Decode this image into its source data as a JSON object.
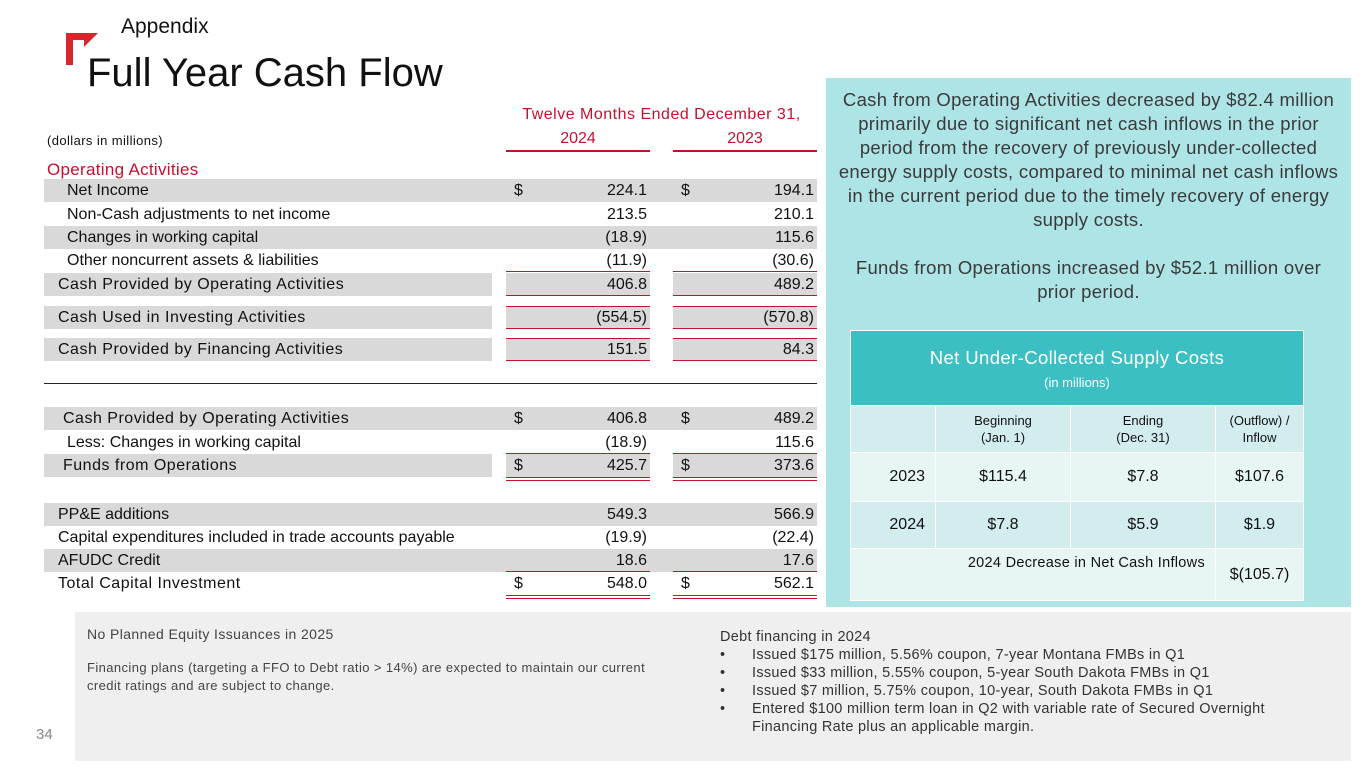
{
  "header": {
    "section": "Appendix",
    "title": "Full Year Cash Flow"
  },
  "table": {
    "units": "(dollars in millions)",
    "period": "Twelve Months Ended December 31,",
    "years": [
      "2024",
      "2023"
    ],
    "operating_header": "Operating Activities",
    "rows": [
      {
        "label": "Net Income",
        "cur": "$",
        "v1": "224.1",
        "v2": "194.1"
      },
      {
        "label": "Non-Cash adjustments to net income",
        "cur": "",
        "v1": "213.5",
        "v2": "210.1"
      },
      {
        "label": "Changes in working capital",
        "cur": "",
        "v1": "(18.9)",
        "v2": "115.6"
      },
      {
        "label": "Other noncurrent assets & liabilities",
        "cur": "",
        "v1": "(11.9)",
        "v2": "(30.6)"
      },
      {
        "label": "Cash Provided by Operating Activities",
        "cur": "",
        "v1": "406.8",
        "v2": "489.2"
      },
      {
        "label": "Cash Used in Investing Activities",
        "cur": "",
        "v1": "(554.5)",
        "v2": "(570.8)"
      },
      {
        "label": "Cash Provided by Financing Activities",
        "cur": "",
        "v1": "151.5",
        "v2": "84.3"
      },
      {
        "label": "Cash Provided by Operating Activities",
        "cur": "$",
        "v1": "406.8",
        "v2": "489.2"
      },
      {
        "label": "Less: Changes in working capital",
        "cur": "",
        "v1": "(18.9)",
        "v2": "115.6"
      },
      {
        "label": "Funds from Operations",
        "cur": "$",
        "v1": "425.7",
        "v2": "373.6"
      },
      {
        "label": "PP&E additions",
        "cur": "",
        "v1": "549.3",
        "v2": "566.9"
      },
      {
        "label": "Capital expenditures included in trade accounts payable",
        "cur": "",
        "v1": "(19.9)",
        "v2": "(22.4)"
      },
      {
        "label": "AFUDC Credit",
        "cur": "",
        "v1": "18.6",
        "v2": "17.6"
      },
      {
        "label": "Total Capital Investment",
        "cur": "$",
        "v1": "548.0",
        "v2": "562.1"
      }
    ]
  },
  "callout": {
    "para1": "Cash from Operating Activities decreased by $82.4 million primarily due to significant net cash inflows in the prior period from the recovery of previously under-collected energy supply costs, compared to minimal net cash inflows in the current period due to the timely recovery of energy supply costs.",
    "para2": "Funds from Operations increased by $52.1 million over prior period.",
    "net_table": {
      "title": "Net Under-Collected Supply Costs",
      "subtitle": "(in millions)",
      "columns": [
        {
          "line1": "Beginning",
          "line2": "(Jan. 1)"
        },
        {
          "line1": "Ending",
          "line2": "(Dec. 31)"
        },
        {
          "line1": "(Outflow) /",
          "line2": "Inflow"
        }
      ],
      "rows": [
        {
          "year": "2023",
          "begin": "$115.4",
          "end": "$7.8",
          "flow": "$107.6"
        },
        {
          "year": "2024",
          "begin": "$7.8",
          "end": "$5.9",
          "flow": "$1.9"
        }
      ],
      "total_label": "2024 Decrease in Net Cash Inflows",
      "total_value": "$(105.7)"
    }
  },
  "bottom": {
    "equity_title": "No Planned Equity Issuances in 2025",
    "equity_text": "Financing plans (targeting a FFO to Debt ratio > 14%) are expected to maintain our current credit ratings and are subject to change.",
    "debt_title": "Debt financing in 2024",
    "debt_items": [
      "Issued $175 million, 5.56% coupon, 7-year Montana FMBs in Q1",
      "Issued $33 million, 5.55% coupon, 5-year South Dakota FMBs in Q1",
      "Issued $7 million, 5.75% coupon, 10-year, South Dakota FMBs in Q1",
      "Entered $100 million term loan in Q2 with variable rate of Secured Overnight Financing Rate plus an applicable margin."
    ]
  },
  "page_number": "34",
  "colors": {
    "accent_red": "#c8102e",
    "teal_bg": "#ade4e6",
    "teal_header": "#3bbfc2"
  }
}
